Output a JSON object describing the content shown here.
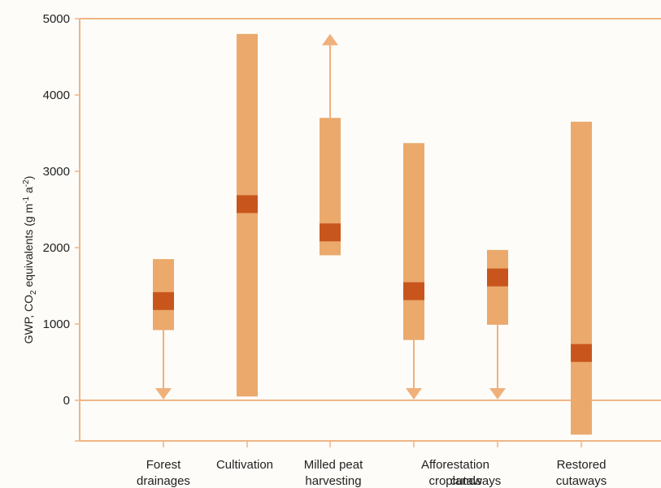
{
  "chart_data": {
    "type": "range",
    "ylabel_main": "GWP, CO",
    "ylabel_sub": "2",
    "ylabel_rest": " equivalents (g m",
    "ylabel_sup1": "-1",
    "ylabel_mid": " a",
    "ylabel_sup2": "-2",
    "ylabel_end": ")",
    "yticks": [
      "5000",
      "4000",
      "3000",
      "2000",
      "1000",
      "0"
    ],
    "ylim": [
      -500,
      5000
    ],
    "categories": [
      {
        "lines": [
          "Forest",
          "drainages"
        ]
      },
      {
        "lines": [
          "Cultivation"
        ]
      },
      {
        "lines": [
          "Milled peat",
          "harvesting"
        ]
      },
      {
        "lines": [
          "Afforestation",
          "croplands"
        ]
      },
      {
        "lines": [
          "",
          "cutaways"
        ]
      },
      {
        "lines": [
          "Restored",
          "cutaways"
        ]
      }
    ],
    "series": [
      {
        "min": 920,
        "max": 1850,
        "mid": 1300,
        "arrow_down": true,
        "arrow_up": false
      },
      {
        "min": 50,
        "max": 4800,
        "mid": 2570,
        "arrow_down": false,
        "arrow_up": false
      },
      {
        "min": 1900,
        "max": 3700,
        "mid": 2200,
        "arrow_down": false,
        "arrow_up": true
      },
      {
        "min": 790,
        "max": 3370,
        "mid": 1430,
        "arrow_down": true,
        "arrow_up": false
      },
      {
        "min": 990,
        "max": 1970,
        "mid": 1610,
        "arrow_down": true,
        "arrow_up": false
      },
      {
        "min": -450,
        "max": 3650,
        "mid": 620,
        "arrow_down": false,
        "arrow_up": false
      }
    ],
    "colors": {
      "range": "#eba96c",
      "mid": "#c8561c",
      "axis": "#efb585",
      "arrow": "#f0b07a"
    }
  }
}
